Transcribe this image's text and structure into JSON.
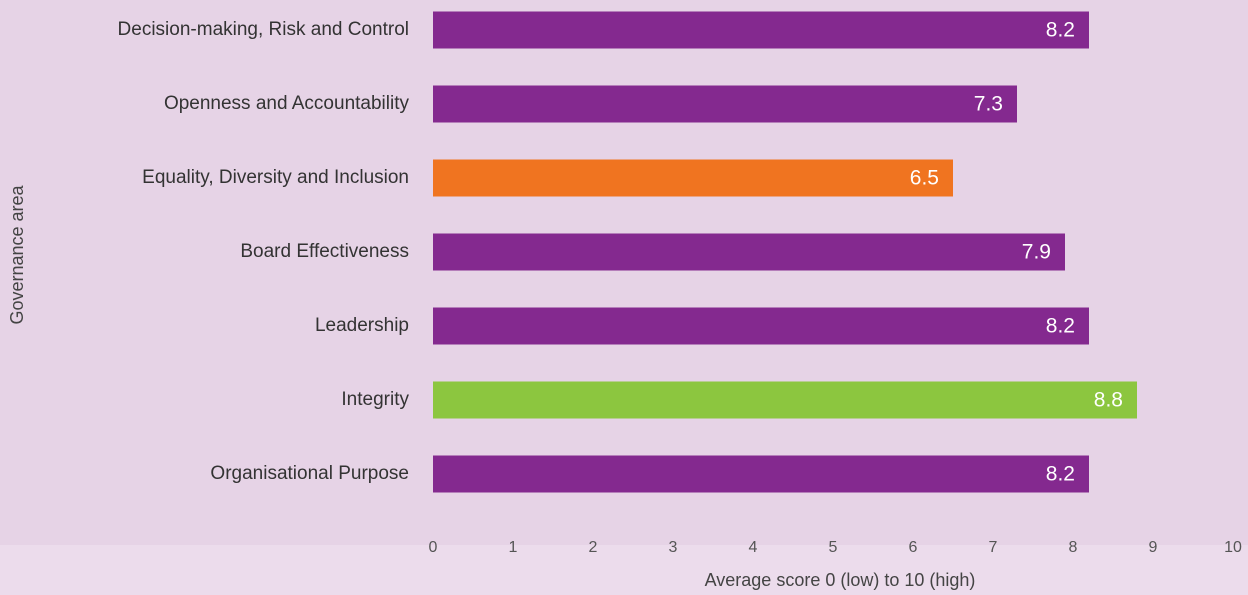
{
  "chart_data": {
    "type": "barh",
    "categories": [
      "Decision-making, Risk and Control",
      "Openness and Accountability",
      "Equality, Diversity and Inclusion",
      "Board Effectiveness",
      "Leadership",
      "Integrity",
      "Organisational Purpose"
    ],
    "values": [
      8.2,
      7.3,
      6.5,
      7.9,
      8.2,
      8.8,
      8.2
    ],
    "colors": [
      "#84298f",
      "#84298f",
      "#f07420",
      "#84298f",
      "#84298f",
      "#8cc63f",
      "#84298f"
    ],
    "xlim": [
      0,
      10
    ],
    "xticks": [
      0,
      1,
      2,
      3,
      4,
      5,
      6,
      7,
      8,
      9,
      10
    ],
    "x_label": "Average score 0 (low)  to 10 (high)",
    "y_label": "Governance area",
    "grid": false
  }
}
